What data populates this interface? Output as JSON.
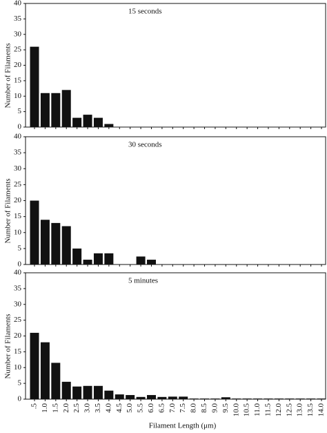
{
  "chart_data": [
    {
      "type": "bar",
      "title": "15 seconds",
      "ylabel": "Number of Filaments",
      "categories": [
        null,
        null,
        null,
        null,
        null,
        null,
        null,
        null,
        null,
        null,
        null,
        null,
        null,
        null,
        null,
        null,
        null,
        null,
        null,
        null,
        null,
        null,
        null,
        null,
        null,
        null,
        null,
        null
      ],
      "values": [
        26,
        11,
        11,
        12,
        3,
        4,
        3,
        1,
        0,
        0,
        0,
        0,
        0,
        0,
        0,
        0,
        0,
        0,
        0,
        0,
        0,
        0,
        0,
        0,
        0,
        0,
        0,
        0
      ],
      "color": "#111111",
      "ylim": [
        0,
        40
      ],
      "yticks": [
        0,
        5,
        10,
        15,
        20,
        25,
        30,
        35,
        40
      ]
    },
    {
      "type": "bar",
      "title": "30 seconds",
      "ylabel": "Number of Filaments",
      "categories": [
        null,
        null,
        null,
        null,
        null,
        null,
        null,
        null,
        null,
        null,
        null,
        null,
        null,
        null,
        null,
        null,
        null,
        null,
        null,
        null,
        null,
        null,
        null,
        null,
        null,
        null,
        null,
        null
      ],
      "values": [
        20,
        14,
        13,
        12,
        5,
        1.5,
        3.5,
        3.5,
        0,
        0,
        2.5,
        1.5,
        0,
        0,
        0,
        0,
        0,
        0,
        0,
        0,
        0,
        0,
        0,
        0,
        0,
        0,
        0,
        0
      ],
      "color": "#111111",
      "ylim": [
        0,
        40
      ],
      "yticks": [
        0,
        5,
        10,
        15,
        20,
        25,
        30,
        35,
        40
      ]
    },
    {
      "type": "bar",
      "title": "5 minutes",
      "ylabel": "Number of Filaments",
      "xlabel": "Filament Length (μm)",
      "categories": [
        ".5",
        "1.0",
        "1.5",
        "2.0",
        "2.5",
        "3.0",
        "3.5",
        "4.0",
        "4.5",
        "5.0",
        "5.5",
        "6.0",
        "6.5",
        "7.0",
        "7.5",
        "8.0",
        "8.5",
        "9.0",
        "9.5",
        "10.0",
        "10.5",
        "11.0",
        "11.5",
        "12.0",
        "12.5",
        "13.0",
        "13.5",
        "14.0"
      ],
      "values": [
        21,
        18,
        11.5,
        5.5,
        4,
        4.2,
        4.2,
        2.7,
        1.5,
        1.3,
        0.7,
        1.3,
        0.7,
        0.8,
        0.8,
        0.2,
        0.2,
        0.2,
        0.6,
        0.2,
        0.2,
        0.2,
        0.2,
        0.2,
        0.2,
        0.2,
        0.2,
        0.2
      ],
      "color": "#111111",
      "ylim": [
        0,
        40
      ],
      "yticks": [
        0,
        5,
        10,
        15,
        20,
        25,
        30,
        35,
        40
      ]
    }
  ]
}
